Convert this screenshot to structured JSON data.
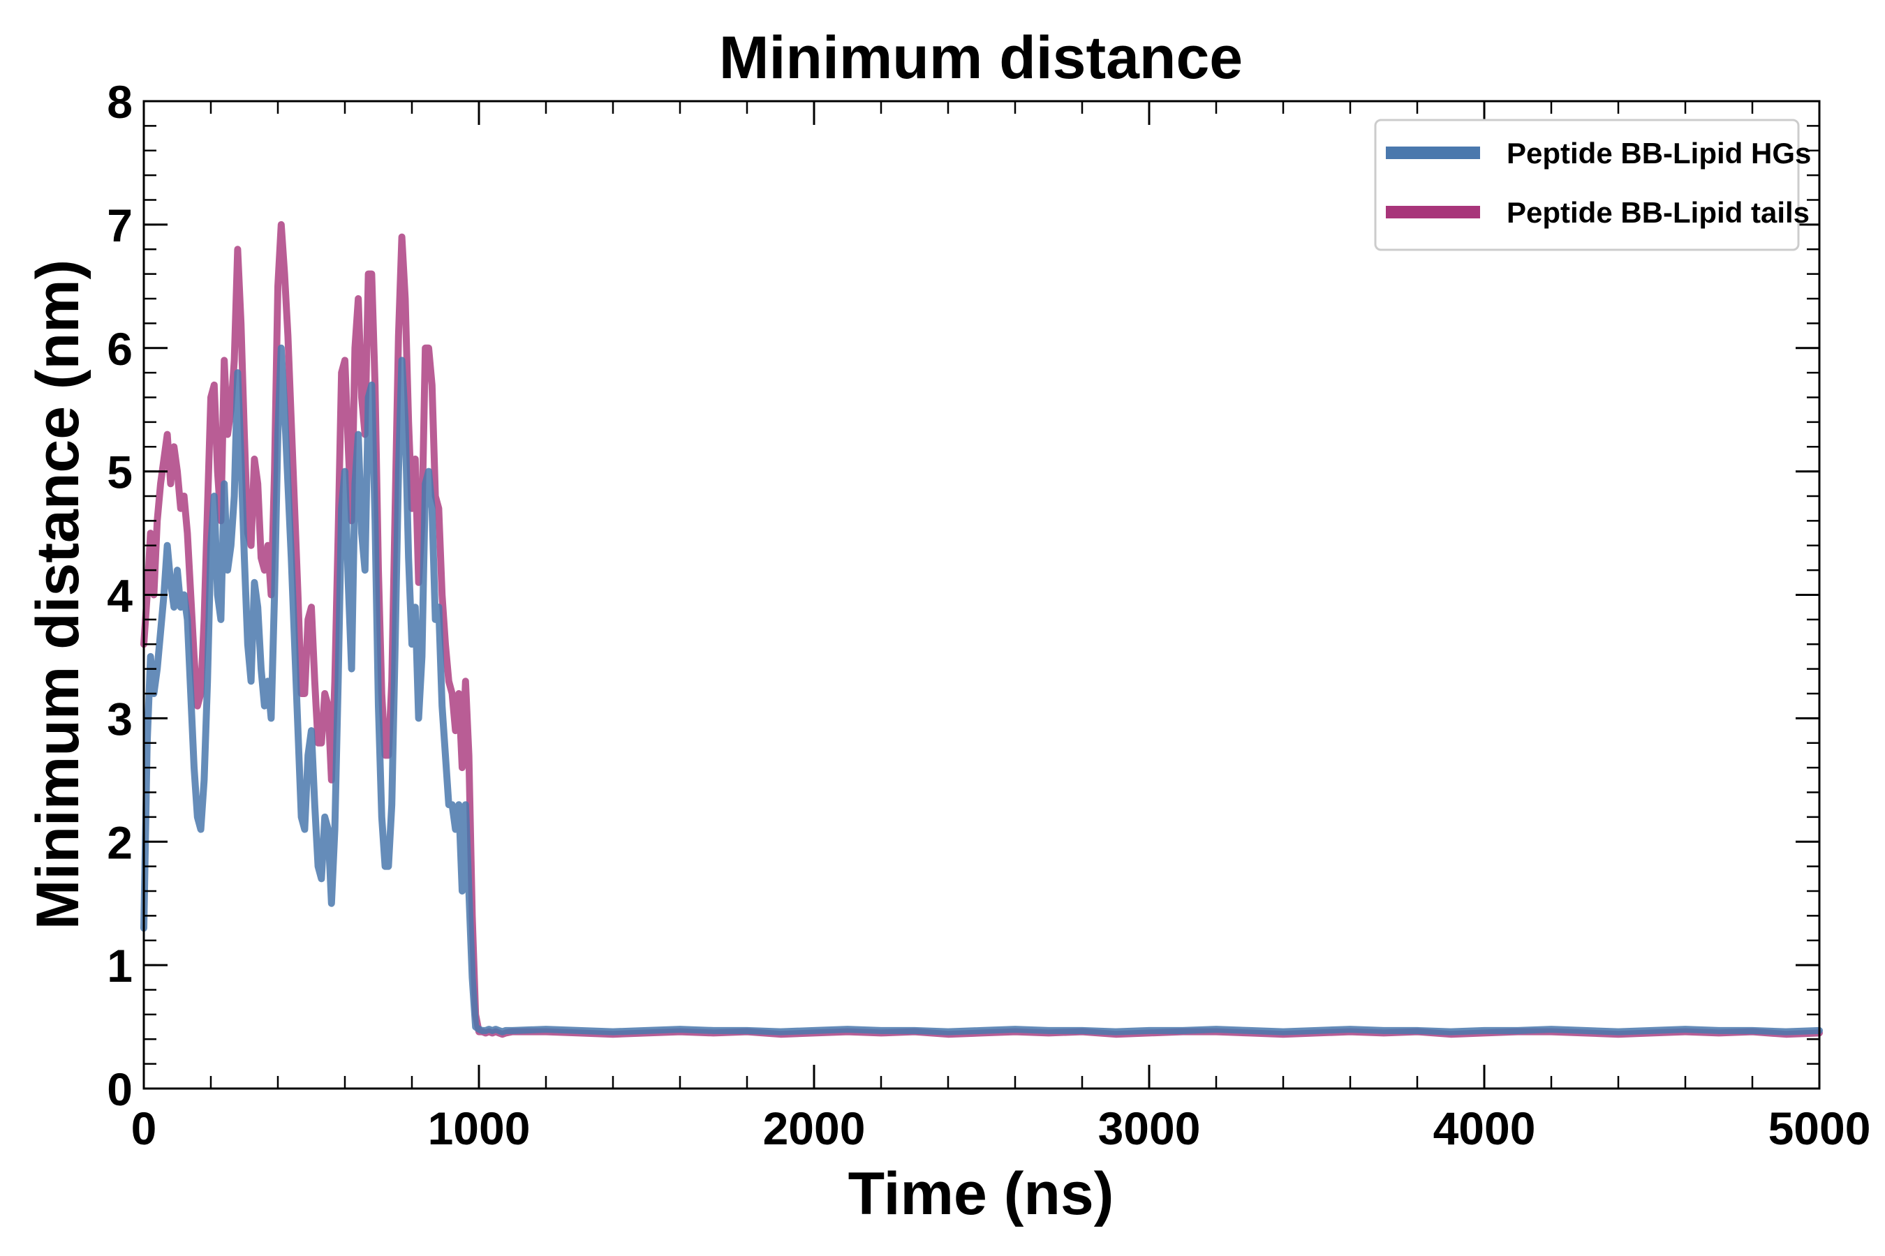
{
  "colors": {
    "series_hgs": "#4a78ad",
    "series_tails": "#a8357a",
    "axis": "#000000",
    "legend_border": "#cccccc",
    "background": "#ffffff"
  },
  "chart_data": {
    "type": "line",
    "title": "Minimum distance",
    "xlabel": "Time (ns)",
    "ylabel": "Minimum distance (nm)",
    "xlim": [
      0,
      5000
    ],
    "ylim": [
      0,
      8
    ],
    "xticks": [
      0,
      1000,
      2000,
      3000,
      4000,
      5000
    ],
    "yticks": [
      0,
      1,
      2,
      3,
      4,
      5,
      6,
      7,
      8
    ],
    "xticks_minor_step": 200,
    "yticks_minor_step": 0.2,
    "grid": false,
    "legend_position": "top-right",
    "series": [
      {
        "name": "Peptide BB-Lipid HGs",
        "color": "#4a78ad",
        "x": [
          0,
          10,
          20,
          30,
          40,
          50,
          60,
          70,
          80,
          90,
          100,
          110,
          120,
          130,
          140,
          150,
          160,
          170,
          180,
          190,
          200,
          210,
          220,
          230,
          240,
          250,
          260,
          270,
          280,
          290,
          300,
          310,
          320,
          330,
          340,
          350,
          360,
          370,
          380,
          390,
          400,
          410,
          420,
          430,
          440,
          450,
          460,
          470,
          480,
          490,
          500,
          510,
          520,
          530,
          540,
          550,
          560,
          570,
          580,
          590,
          600,
          610,
          620,
          630,
          640,
          650,
          660,
          670,
          680,
          690,
          700,
          710,
          720,
          730,
          740,
          750,
          760,
          770,
          780,
          790,
          800,
          810,
          820,
          830,
          840,
          850,
          860,
          870,
          880,
          890,
          900,
          910,
          920,
          930,
          940,
          950,
          960,
          970,
          980,
          990,
          1000,
          1010,
          1020,
          1030,
          1040,
          1050,
          1060,
          1070,
          1080,
          1100,
          1200,
          1300,
          1400,
          1500,
          1600,
          1700,
          1800,
          1900,
          2000,
          2100,
          2200,
          2300,
          2400,
          2500,
          2600,
          2700,
          2800,
          2900,
          3000,
          3100,
          3200,
          3300,
          3400,
          3500,
          3600,
          3700,
          3800,
          3900,
          4000,
          4100,
          4200,
          4300,
          4400,
          4500,
          4600,
          4700,
          4800,
          4900,
          5000
        ],
        "y": [
          1.3,
          2.8,
          3.5,
          3.2,
          3.4,
          3.7,
          4.0,
          4.4,
          4.1,
          3.9,
          4.2,
          3.9,
          4.0,
          3.8,
          3.2,
          2.6,
          2.2,
          2.1,
          2.5,
          3.3,
          4.4,
          4.8,
          4.0,
          3.8,
          4.9,
          4.2,
          4.4,
          4.8,
          5.8,
          5.1,
          4.3,
          3.6,
          3.3,
          4.1,
          3.9,
          3.4,
          3.1,
          3.3,
          3.0,
          4.0,
          5.3,
          6.0,
          5.5,
          4.9,
          4.3,
          3.6,
          2.9,
          2.2,
          2.1,
          2.7,
          2.9,
          2.3,
          1.8,
          1.7,
          2.2,
          2.1,
          1.5,
          2.1,
          3.3,
          4.7,
          5.0,
          4.1,
          3.4,
          4.9,
          5.3,
          4.5,
          4.2,
          5.6,
          5.7,
          4.6,
          3.1,
          2.2,
          1.8,
          1.8,
          2.3,
          3.6,
          5.0,
          5.9,
          5.4,
          4.3,
          3.6,
          3.9,
          3.0,
          3.5,
          4.9,
          5.0,
          4.7,
          3.8,
          3.9,
          3.1,
          2.7,
          2.3,
          2.3,
          2.1,
          2.3,
          1.6,
          2.3,
          1.6,
          0.9,
          0.5,
          0.48,
          0.47,
          0.47,
          0.48,
          0.47,
          0.48,
          0.47,
          0.46,
          0.47,
          0.47,
          0.48,
          0.47,
          0.46,
          0.47,
          0.48,
          0.47,
          0.47,
          0.46,
          0.47,
          0.48,
          0.47,
          0.47,
          0.46,
          0.47,
          0.48,
          0.47,
          0.47,
          0.46,
          0.47,
          0.47,
          0.48,
          0.47,
          0.46,
          0.47,
          0.48,
          0.47,
          0.47,
          0.46,
          0.47,
          0.47,
          0.48,
          0.47,
          0.46,
          0.47,
          0.48,
          0.47,
          0.47,
          0.46,
          0.47
        ]
      },
      {
        "name": "Peptide BB-Lipid tails",
        "color": "#a8357a",
        "x": [
          0,
          10,
          20,
          30,
          40,
          50,
          60,
          70,
          80,
          90,
          100,
          110,
          120,
          130,
          140,
          150,
          160,
          170,
          180,
          190,
          200,
          210,
          220,
          230,
          240,
          250,
          260,
          270,
          280,
          290,
          300,
          310,
          320,
          330,
          340,
          350,
          360,
          370,
          380,
          390,
          400,
          410,
          420,
          430,
          440,
          450,
          460,
          470,
          480,
          490,
          500,
          510,
          520,
          530,
          540,
          550,
          560,
          570,
          580,
          590,
          600,
          610,
          620,
          630,
          640,
          650,
          660,
          670,
          680,
          690,
          700,
          710,
          720,
          730,
          740,
          750,
          760,
          770,
          780,
          790,
          800,
          810,
          820,
          830,
          840,
          850,
          860,
          870,
          880,
          890,
          900,
          910,
          920,
          930,
          940,
          950,
          960,
          970,
          980,
          990,
          1000,
          1010,
          1020,
          1030,
          1040,
          1050,
          1060,
          1070,
          1080,
          1100,
          1200,
          1300,
          1400,
          1500,
          1600,
          1700,
          1800,
          1900,
          2000,
          2100,
          2200,
          2300,
          2400,
          2500,
          2600,
          2700,
          2800,
          2900,
          3000,
          3100,
          3200,
          3300,
          3400,
          3500,
          3600,
          3700,
          3800,
          3900,
          4000,
          4100,
          4200,
          4300,
          4400,
          4500,
          4600,
          4700,
          4800,
          4900,
          5000
        ],
        "y": [
          3.6,
          4.0,
          4.5,
          4.0,
          4.6,
          4.9,
          5.1,
          5.3,
          4.9,
          5.2,
          5.0,
          4.7,
          4.8,
          4.5,
          4.0,
          3.5,
          3.1,
          3.2,
          3.8,
          4.7,
          5.6,
          5.7,
          5.0,
          4.6,
          5.9,
          5.3,
          5.5,
          5.9,
          6.8,
          6.2,
          5.3,
          4.5,
          4.4,
          5.1,
          4.9,
          4.3,
          4.2,
          4.4,
          4.0,
          5.0,
          6.5,
          7.0,
          6.6,
          6.1,
          5.4,
          4.7,
          4.0,
          3.2,
          3.2,
          3.8,
          3.9,
          3.3,
          2.8,
          2.8,
          3.2,
          3.1,
          2.5,
          3.3,
          4.5,
          5.8,
          5.9,
          5.2,
          4.6,
          6.0,
          6.4,
          5.6,
          5.3,
          6.6,
          6.6,
          5.7,
          4.2,
          3.2,
          2.7,
          2.7,
          3.3,
          4.7,
          6.1,
          6.9,
          6.4,
          5.4,
          4.7,
          5.1,
          4.1,
          4.6,
          6.0,
          6.0,
          5.7,
          4.8,
          4.7,
          4.0,
          3.6,
          3.3,
          3.2,
          2.9,
          3.2,
          2.6,
          3.3,
          2.7,
          1.4,
          0.6,
          0.46,
          0.46,
          0.45,
          0.46,
          0.45,
          0.46,
          0.45,
          0.44,
          0.45,
          0.46,
          0.46,
          0.45,
          0.44,
          0.45,
          0.46,
          0.45,
          0.46,
          0.44,
          0.45,
          0.46,
          0.45,
          0.46,
          0.44,
          0.45,
          0.46,
          0.45,
          0.46,
          0.44,
          0.45,
          0.46,
          0.46,
          0.45,
          0.44,
          0.45,
          0.46,
          0.45,
          0.46,
          0.44,
          0.45,
          0.46,
          0.46,
          0.45,
          0.44,
          0.45,
          0.46,
          0.45,
          0.46,
          0.44,
          0.45
        ]
      }
    ]
  }
}
